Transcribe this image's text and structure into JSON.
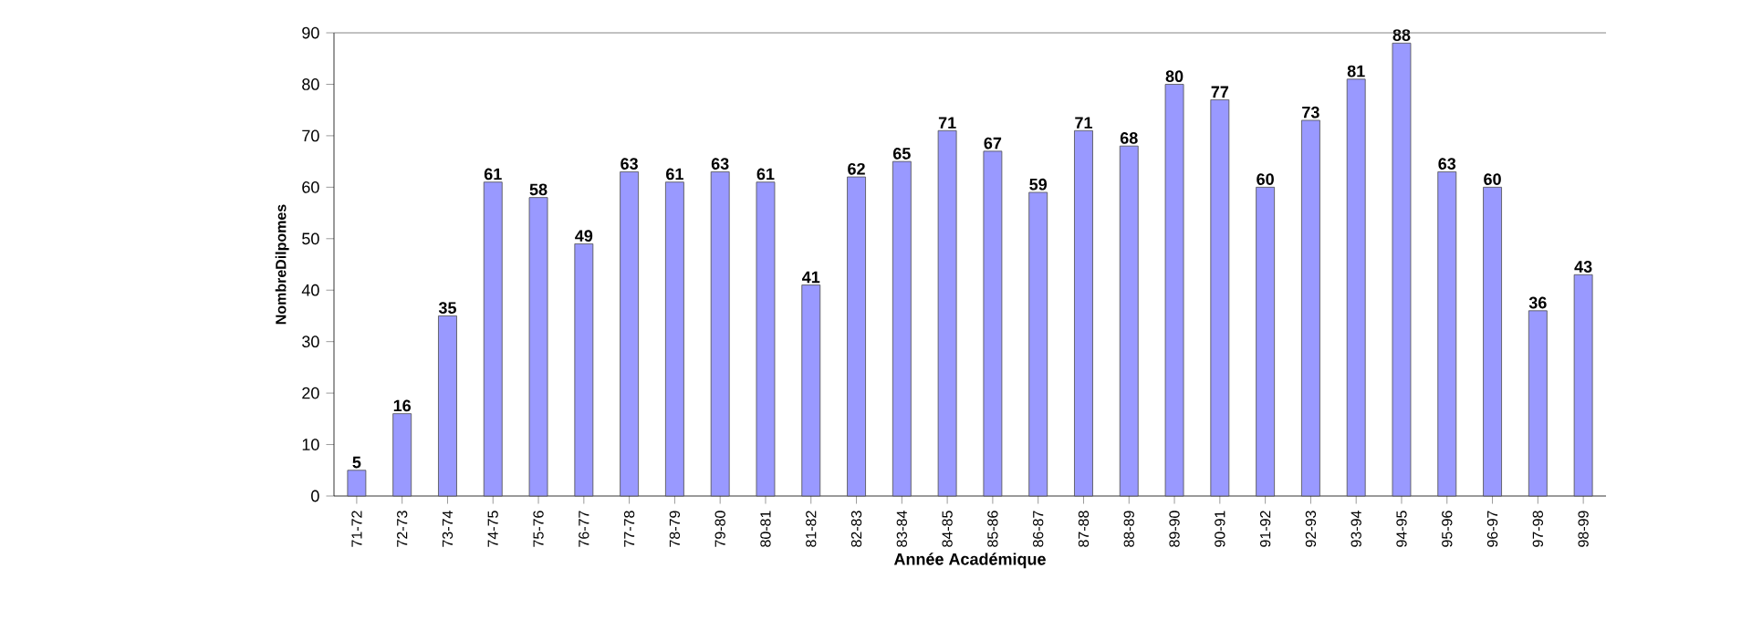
{
  "chart_data": {
    "type": "bar",
    "xlabel": "Année Académique",
    "ylabel": "NombreDilpomes",
    "categories": [
      "71-72",
      "72-73",
      "73-74",
      "74-75",
      "75-76",
      "76-77",
      "77-78",
      "78-79",
      "79-80",
      "80-81",
      "81-82",
      "82-83",
      "83-84",
      "84-85",
      "85-86",
      "86-87",
      "87-88",
      "88-89",
      "89-90",
      "90-91",
      "91-92",
      "92-93",
      "93-94",
      "94-95",
      "95-96",
      "96-97",
      "97-98",
      "98-99"
    ],
    "values": [
      5,
      16,
      35,
      61,
      58,
      49,
      63,
      61,
      63,
      61,
      41,
      62,
      65,
      71,
      67,
      59,
      71,
      68,
      80,
      77,
      60,
      73,
      81,
      88,
      63,
      60,
      36,
      43
    ],
    "color": "#9999ff",
    "ylim": [
      0,
      90
    ],
    "yticks": [
      0,
      10,
      20,
      30,
      40,
      50,
      60,
      70,
      80,
      90
    ],
    "data_labels": true,
    "grid": false
  }
}
